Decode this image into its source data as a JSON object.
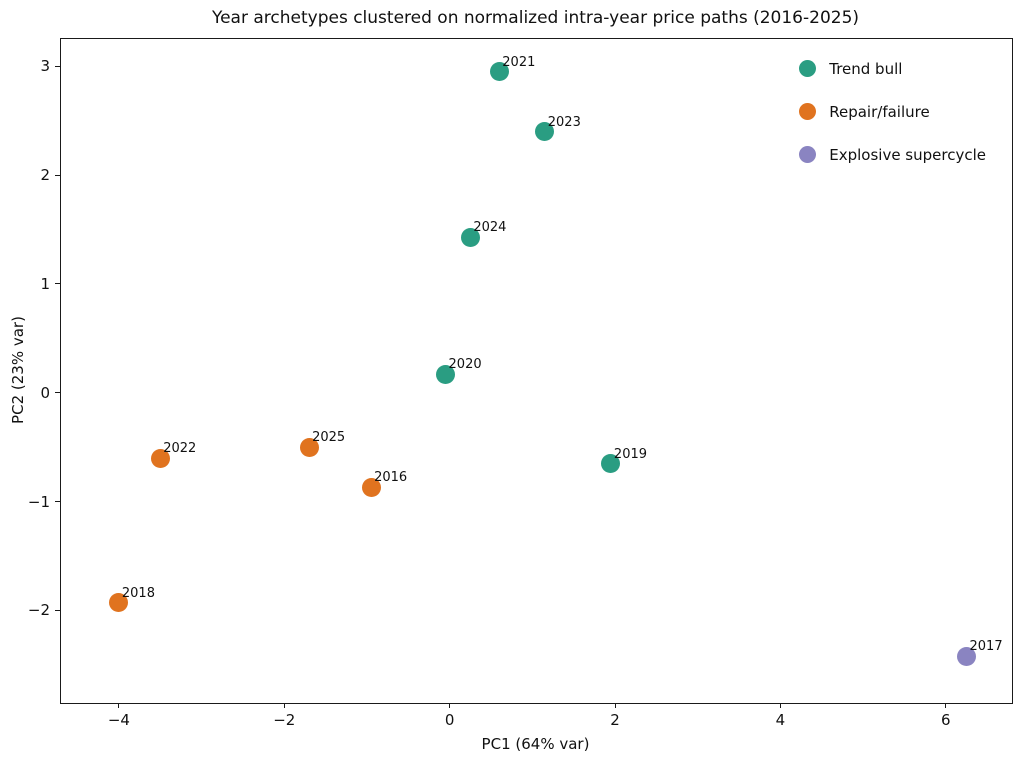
{
  "chart_data": {
    "type": "scatter",
    "title": "Year archetypes clustered on normalized intra-year price paths (2016-2025)",
    "xlabel": "PC1 (64% var)",
    "ylabel": "PC2 (23% var)",
    "xlim": [
      -4.7,
      6.8
    ],
    "ylim": [
      -2.85,
      3.25
    ],
    "grid": false,
    "legend_position": "upper right",
    "xticks": [
      {
        "value": -4,
        "label": "−4"
      },
      {
        "value": -2,
        "label": "−2"
      },
      {
        "value": 0,
        "label": "0"
      },
      {
        "value": 2,
        "label": "2"
      },
      {
        "value": 4,
        "label": "4"
      },
      {
        "value": 6,
        "label": "6"
      }
    ],
    "yticks": [
      {
        "value": -2,
        "label": "−2"
      },
      {
        "value": -1,
        "label": "−1"
      },
      {
        "value": 0,
        "label": "0"
      },
      {
        "value": 1,
        "label": "1"
      },
      {
        "value": 2,
        "label": "2"
      },
      {
        "value": 3,
        "label": "3"
      }
    ],
    "series": [
      {
        "name": "Trend bull",
        "color": "#2a9d82",
        "points": [
          {
            "label": "2021",
            "x": 0.6,
            "y": 2.95
          },
          {
            "label": "2023",
            "x": 1.15,
            "y": 2.4
          },
          {
            "label": "2024",
            "x": 0.25,
            "y": 1.43
          },
          {
            "label": "2020",
            "x": -0.05,
            "y": 0.17
          },
          {
            "label": "2019",
            "x": 1.95,
            "y": -0.65
          }
        ]
      },
      {
        "name": "Repair/failure",
        "color": "#e0731f",
        "points": [
          {
            "label": "2022",
            "x": -3.5,
            "y": -0.6
          },
          {
            "label": "2025",
            "x": -1.7,
            "y": -0.5
          },
          {
            "label": "2016",
            "x": -0.95,
            "y": -0.87
          },
          {
            "label": "2018",
            "x": -4.0,
            "y": -1.93
          }
        ]
      },
      {
        "name": "Explosive supercycle",
        "color": "#8a84c1",
        "points": [
          {
            "label": "2017",
            "x": 6.25,
            "y": -2.42
          }
        ]
      }
    ]
  }
}
